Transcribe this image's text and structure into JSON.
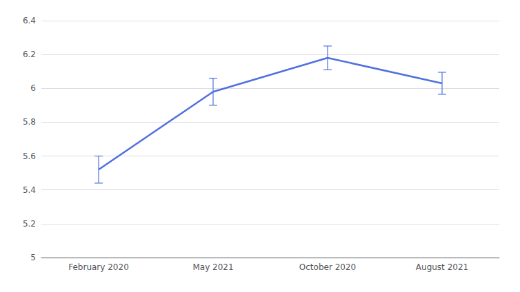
{
  "chart_data": {
    "type": "line",
    "categories": [
      "February 2020",
      "May 2021",
      "October 2020",
      "August 2021"
    ],
    "values": [
      5.52,
      5.98,
      6.18,
      6.03
    ],
    "errors": [
      0.08,
      0.08,
      0.07,
      0.065
    ],
    "ylim": [
      5,
      6.4
    ],
    "yticks": [
      5,
      5.2,
      5.4,
      5.6,
      5.8,
      6,
      6.2,
      6.4
    ],
    "grid": true
  }
}
